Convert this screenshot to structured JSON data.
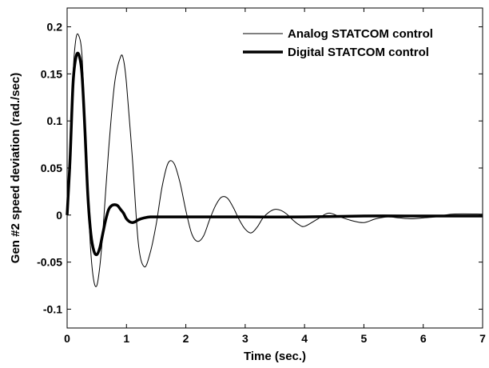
{
  "chart_data": {
    "type": "line",
    "title": "",
    "xlabel": "Time (sec.)",
    "ylabel": "Gen #2 speed deviation (rad./sec)",
    "xlim": [
      0,
      7
    ],
    "ylim": [
      -0.12,
      0.22
    ],
    "xticks": [
      0,
      1,
      2,
      3,
      4,
      5,
      6,
      7
    ],
    "yticks": [
      -0.1,
      -0.05,
      0,
      0.05,
      0.1,
      0.15,
      0.2
    ],
    "ytick_labels": [
      "-0.1",
      "-0.05",
      "0",
      "0.05",
      "0.1",
      "0.15",
      "0.2"
    ],
    "grid": false,
    "legend_position": "top-right",
    "series": [
      {
        "name": "Analog STATCOM control",
        "color": "#000000",
        "style": "thin",
        "x": [
          0,
          0.05,
          0.1,
          0.15,
          0.2,
          0.25,
          0.3,
          0.35,
          0.4,
          0.45,
          0.5,
          0.55,
          0.6,
          0.7,
          0.8,
          0.9,
          0.95,
          1.0,
          1.1,
          1.2,
          1.3,
          1.4,
          1.5,
          1.6,
          1.7,
          1.8,
          1.9,
          2.0,
          2.1,
          2.2,
          2.3,
          2.4,
          2.5,
          2.6,
          2.7,
          2.8,
          2.9,
          3.0,
          3.1,
          3.2,
          3.3,
          3.4,
          3.5,
          3.6,
          3.7,
          3.8,
          3.9,
          4.0,
          4.2,
          4.4,
          4.6,
          4.8,
          5.0,
          5.2,
          5.4,
          5.6,
          5.8,
          6.0,
          6.2,
          6.5,
          7.0
        ],
        "y": [
          0,
          0.06,
          0.15,
          0.188,
          0.19,
          0.17,
          0.1,
          0.02,
          -0.04,
          -0.07,
          -0.075,
          -0.055,
          -0.02,
          0.07,
          0.14,
          0.168,
          0.165,
          0.14,
          0.06,
          -0.03,
          -0.055,
          -0.04,
          -0.01,
          0.03,
          0.055,
          0.055,
          0.035,
          0.005,
          -0.02,
          -0.028,
          -0.022,
          -0.005,
          0.01,
          0.019,
          0.018,
          0.008,
          -0.005,
          -0.015,
          -0.019,
          -0.013,
          -0.003,
          0.003,
          0.006,
          0.005,
          0.001,
          -0.005,
          -0.01,
          -0.012,
          -0.005,
          0.002,
          -0.002,
          -0.006,
          -0.008,
          -0.004,
          -0.002,
          -0.003,
          -0.004,
          -0.003,
          -0.002,
          0.001,
          0.001
        ]
      },
      {
        "name": "Digital STATCOM control",
        "color": "#000000",
        "style": "thick",
        "x": [
          0,
          0.05,
          0.1,
          0.15,
          0.2,
          0.25,
          0.3,
          0.35,
          0.4,
          0.45,
          0.5,
          0.55,
          0.6,
          0.65,
          0.7,
          0.75,
          0.8,
          0.85,
          0.9,
          0.95,
          1.0,
          1.05,
          1.1,
          1.15,
          1.2,
          1.3,
          1.4,
          1.6,
          2.0,
          3.0,
          4.0,
          5.0,
          6.0,
          7.0
        ],
        "y": [
          0,
          0.06,
          0.14,
          0.168,
          0.17,
          0.15,
          0.09,
          0.02,
          -0.02,
          -0.038,
          -0.042,
          -0.035,
          -0.02,
          -0.005,
          0.006,
          0.01,
          0.011,
          0.01,
          0.006,
          0.002,
          -0.004,
          -0.007,
          -0.008,
          -0.007,
          -0.005,
          -0.003,
          -0.002,
          -0.002,
          -0.002,
          -0.002,
          -0.002,
          -0.001,
          -0.001,
          -0.001
        ]
      }
    ]
  }
}
